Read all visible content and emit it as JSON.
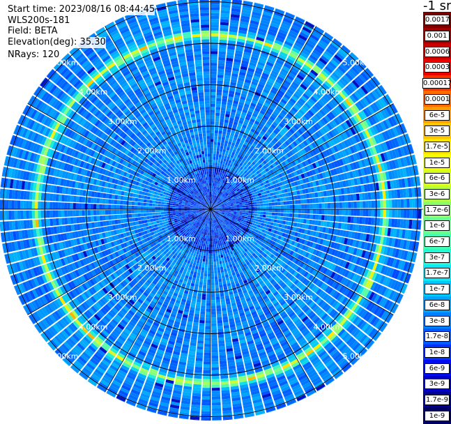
{
  "info": {
    "start_time": "Start time: 2023/08/16 08:44:45",
    "device": "WLS200s-181",
    "field": "Field: BETA",
    "elevation": "Elevation(deg): 35.30",
    "nrays": "NRays: 120"
  },
  "colorbar": {
    "unit": "-1 sr",
    "labels": [
      "0.0017",
      "0.001",
      "0.0006",
      "0.0003",
      "0.00017",
      "0.0001",
      "6e-5",
      "3e-5",
      "1.7e-5",
      "1e-5",
      "6e-6",
      "3e-6",
      "1.7e-6",
      "1e-6",
      "6e-7",
      "3e-7",
      "1.7e-7",
      "1e-7",
      "6e-8",
      "3e-8",
      "1.7e-8",
      "1e-8",
      "6e-9",
      "3e-9",
      "1.7e-9",
      "1e-9"
    ],
    "colors": [
      "#7a0000",
      "#a00000",
      "#c80000",
      "#ee0000",
      "#ff3000",
      "#ff6a00",
      "#ff9c00",
      "#ffc600",
      "#ffe800",
      "#f6ff00",
      "#d6ff1c",
      "#b2ff44",
      "#8cff6a",
      "#66ff90",
      "#44ffb4",
      "#22fbd8",
      "#10e6f4",
      "#00c8ff",
      "#00a4ff",
      "#0080ff",
      "#005aff",
      "#0032ff",
      "#000cf0",
      "#0000c4",
      "#000096",
      "#000064"
    ]
  },
  "chart_data": {
    "type": "heatmap",
    "projection": "polar PPI",
    "field": "BETA",
    "elevation_deg": 35.3,
    "n_rays": 120,
    "range_rings_km": [
      1.0,
      2.0,
      3.0,
      4.0,
      5.0
    ],
    "ring_labels": [
      "1.00km",
      "2.00km",
      "3.00km",
      "4.00km",
      "5.00km"
    ],
    "spoke_angles_deg": [
      0,
      30,
      60,
      90,
      120,
      150,
      180,
      210,
      240,
      270,
      300,
      330
    ],
    "color_scale": "log",
    "value_range": [
      1e-09,
      0.0017
    ],
    "features": [
      {
        "name": "background",
        "value": 1e-08
      },
      {
        "name": "aerosol ring",
        "range_km": 4.2,
        "value": 1e-06
      }
    ]
  }
}
